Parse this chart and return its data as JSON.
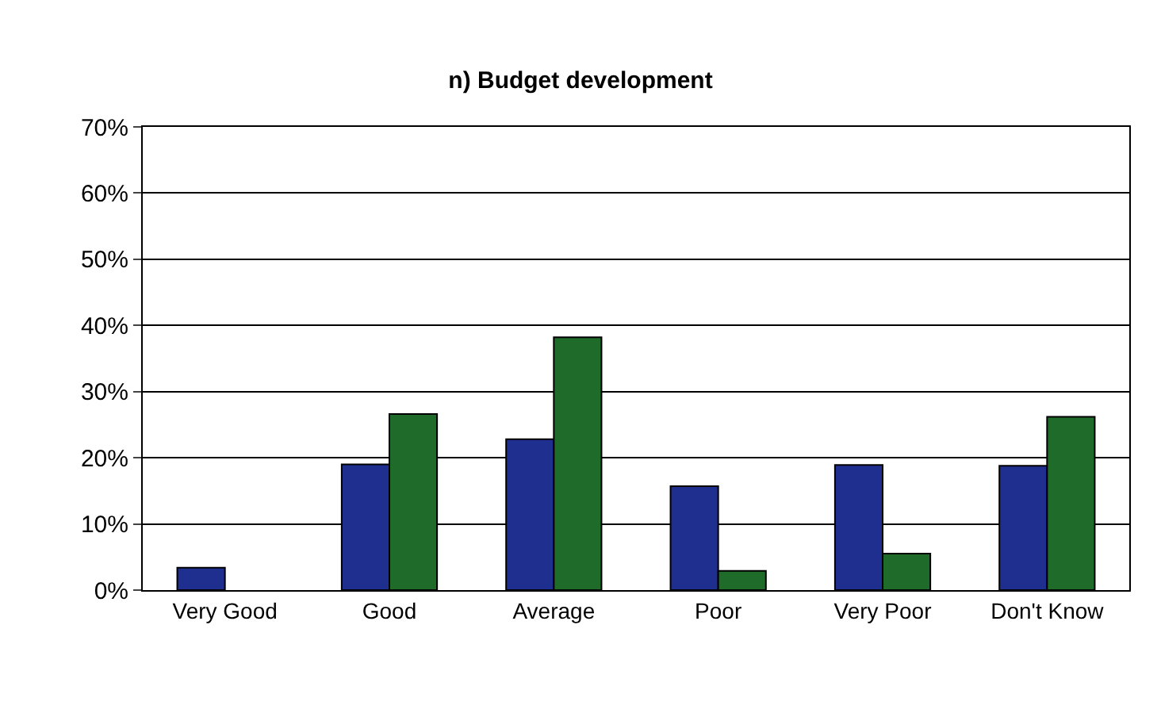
{
  "chart_data": {
    "type": "bar",
    "title": "n) Budget development",
    "categories": [
      "Very Good",
      "Good",
      "Average",
      "Poor",
      "Very Poor",
      "Don't Know"
    ],
    "series": [
      {
        "color": "#1f2f8f",
        "values": [
          3.4,
          19,
          22.8,
          15.7,
          18.9,
          18.8
        ]
      },
      {
        "color": "#1f6b2a",
        "values": [
          null,
          26.6,
          38.2,
          2.9,
          5.5,
          26.2
        ]
      }
    ],
    "ylim": [
      0,
      70
    ],
    "yticks": [
      {
        "value": 0,
        "label": "0%"
      },
      {
        "value": 10,
        "label": "10%"
      },
      {
        "value": 20,
        "label": "20%"
      },
      {
        "value": 30,
        "label": "30%"
      },
      {
        "value": 40,
        "label": "40%"
      },
      {
        "value": 50,
        "label": "50%"
      },
      {
        "value": 60,
        "label": "60%"
      },
      {
        "value": 70,
        "label": "70%"
      }
    ],
    "grid": "y"
  }
}
